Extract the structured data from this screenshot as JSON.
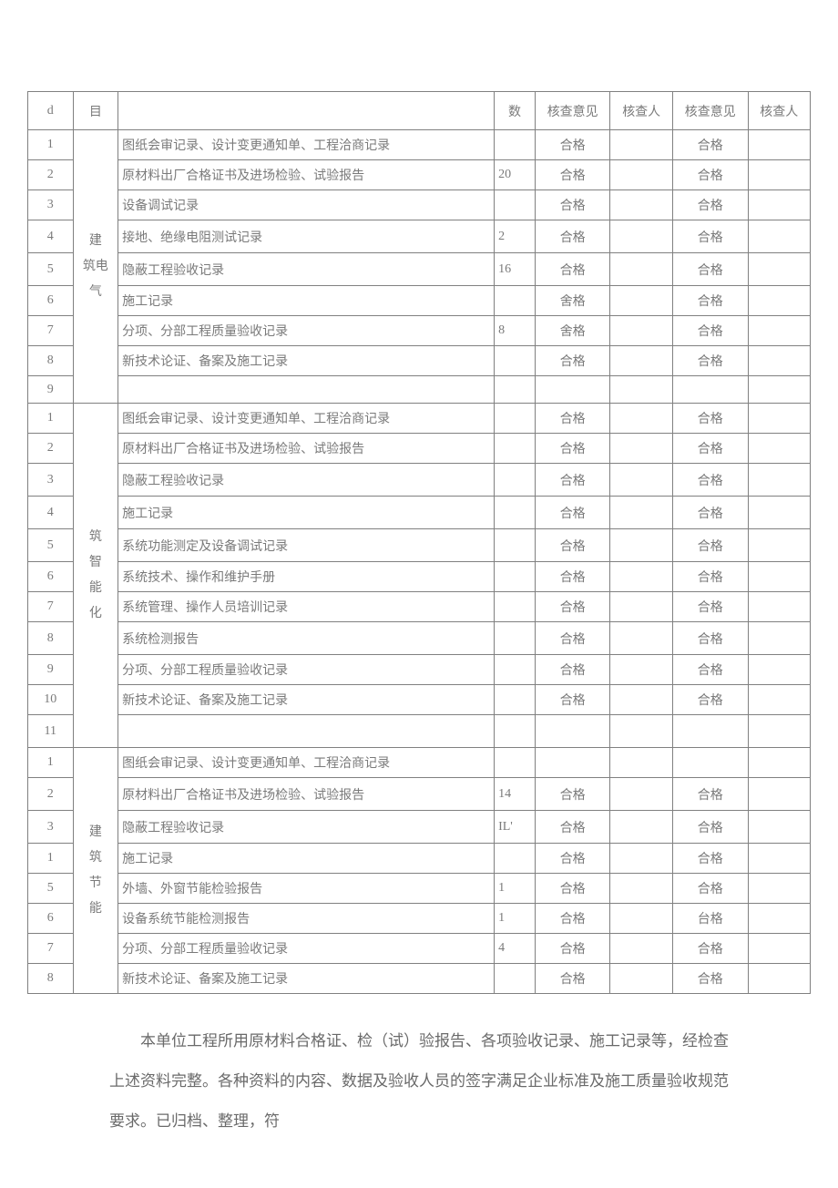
{
  "table": {
    "header": {
      "col1": "d",
      "col2": "目",
      "col3": "",
      "col4": "数",
      "col5": "核查意见",
      "col6": "核查人",
      "col7": "核查意见",
      "col8": "核查人"
    },
    "sections": [
      {
        "category": "建筑电气",
        "category_parts": [
          "建",
          "筑电",
          "气"
        ],
        "rows": [
          {
            "num": "1",
            "item": "图纸会审记录、设计变更通知单、工程洽商记录",
            "qty": "",
            "op1": "合格",
            "p1": "",
            "op2": "合格",
            "p2": ""
          },
          {
            "num": "2",
            "item": "原材料出厂合格证书及进场检验、试验报告",
            "qty": "20",
            "op1": "合格",
            "p1": "",
            "op2": "合格",
            "p2": ""
          },
          {
            "num": "3",
            "item": "设备调试记录",
            "qty": "",
            "op1": "合格",
            "p1": "",
            "op2": "合格",
            "p2": ""
          },
          {
            "num": "4",
            "item": "接地、绝缘电阻测试记录",
            "qty": "2",
            "op1": "合格",
            "p1": "",
            "op2": "合格",
            "p2": ""
          },
          {
            "num": "5",
            "item": "隐蔽工程验收记录",
            "qty": "16",
            "op1": "合格",
            "p1": "",
            "op2": "合格",
            "p2": ""
          },
          {
            "num": "6",
            "item": "施工记录",
            "qty": "",
            "op1": "舍格",
            "p1": "",
            "op2": "合格",
            "p2": ""
          },
          {
            "num": "7",
            "item": "分项、分部工程质量验收记录",
            "qty": "8",
            "op1": "舍格",
            "p1": "",
            "op2": "合格",
            "p2": ""
          },
          {
            "num": "8",
            "item": "新技术论证、备案及施工记录",
            "qty": "",
            "op1": "合格",
            "p1": "",
            "op2": "合格",
            "p2": ""
          },
          {
            "num": "9",
            "item": "",
            "qty": "",
            "op1": "",
            "p1": "",
            "op2": "",
            "p2": ""
          }
        ]
      },
      {
        "category": "筑智能化",
        "category_parts": [
          "筑",
          "智",
          "能",
          "化"
        ],
        "rows": [
          {
            "num": "1",
            "item": "图纸会审记录、设计变更通知单、工程洽商记录",
            "qty": "",
            "op1": "合格",
            "p1": "",
            "op2": "合格",
            "p2": ""
          },
          {
            "num": "2",
            "item": "原材料出厂合格证书及进场检验、试验报告",
            "qty": "",
            "op1": "合格",
            "p1": "",
            "op2": "合格",
            "p2": ""
          },
          {
            "num": "3",
            "item": "隐蔽工程验收记录",
            "qty": "",
            "op1": "合格",
            "p1": "",
            "op2": "合格",
            "p2": ""
          },
          {
            "num": "4",
            "item": "施工记录",
            "qty": "",
            "op1": "合格",
            "p1": "",
            "op2": "合格",
            "p2": ""
          },
          {
            "num": "5",
            "item": "系统功能测定及设备调试记录",
            "qty": "",
            "op1": "合格",
            "p1": "",
            "op2": "合格",
            "p2": ""
          },
          {
            "num": "6",
            "item": "系统技术、操作和维护手册",
            "qty": "",
            "op1": "合格",
            "p1": "",
            "op2": "合格",
            "p2": ""
          },
          {
            "num": "7",
            "item": "系统管理、操作人员培训记录",
            "qty": "",
            "op1": "合格",
            "p1": "",
            "op2": "合格",
            "p2": ""
          },
          {
            "num": "8",
            "item": "系统检测报告",
            "qty": "",
            "op1": "合格",
            "p1": "",
            "op2": "合格",
            "p2": ""
          },
          {
            "num": "9",
            "item": "分项、分部工程质量验收记录",
            "qty": "",
            "op1": "合格",
            "p1": "",
            "op2": "合格",
            "p2": ""
          },
          {
            "num": "10",
            "item": "新技术论证、备案及施工记录",
            "qty": "",
            "op1": "合格",
            "p1": "",
            "op2": "合格",
            "p2": ""
          },
          {
            "num": "11",
            "item": "",
            "qty": "",
            "op1": "",
            "p1": "",
            "op2": "",
            "p2": ""
          }
        ]
      },
      {
        "category": "建筑节能",
        "category_parts": [
          "建",
          "筑",
          "节",
          "能"
        ],
        "rows": [
          {
            "num": "1",
            "item": "图纸会审记录、设计变更通知单、工程洽商记录",
            "qty": "",
            "op1": "",
            "p1": "",
            "op2": "",
            "p2": ""
          },
          {
            "num": "2",
            "item": "原材料出厂合格证书及进场检验、试验报告",
            "qty": "14",
            "op1": "合格",
            "p1": "",
            "op2": "合格",
            "p2": ""
          },
          {
            "num": "3",
            "item": "隐蔽工程验收记录",
            "qty": "IL'",
            "op1": "合格",
            "p1": "",
            "op2": "合格",
            "p2": ""
          },
          {
            "num": "1",
            "item": "施工记录",
            "qty": "",
            "op1": "合格",
            "p1": "",
            "op2": "合格",
            "p2": ""
          },
          {
            "num": "5",
            "item": "外墙、外窗节能检验报告",
            "qty": "1",
            "op1": "合格",
            "p1": "",
            "op2": "合格",
            "p2": ""
          },
          {
            "num": "6",
            "item": "设备系统节能检测报告",
            "qty": "1",
            "op1": "合格",
            "p1": "",
            "op2": "台格",
            "p2": ""
          },
          {
            "num": "7",
            "item": "分项、分部工程质量验收记录",
            "qty": "4",
            "op1": "合格",
            "p1": "",
            "op2": "合格",
            "p2": ""
          },
          {
            "num": "8",
            "item": "新技术论证、备案及施工记录",
            "qty": "",
            "op1": "合格",
            "p1": "",
            "op2": "合格",
            "p2": ""
          }
        ]
      }
    ]
  },
  "paragraph": "本单位工程所用原材料合格证、检（试）验报告、各项验收记录、施工记录等，经检查上述资料完整。各种资料的内容、数据及验收人员的签字满足企业标准及施工质量验收规范要求。已归档、整理，符",
  "styles": {
    "border_color": "#808080",
    "text_color": "#7a7a7a",
    "background_color": "#ffffff",
    "font_family": "SimSun",
    "cell_font_size": 14,
    "paragraph_font_size": 17,
    "paragraph_line_height": 2.6
  }
}
